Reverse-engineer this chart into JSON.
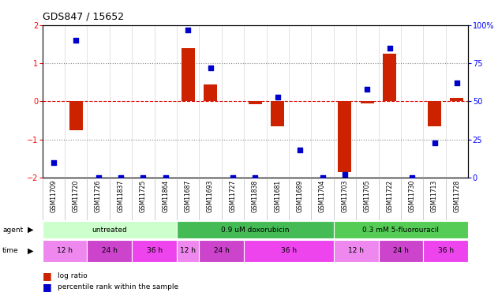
{
  "title": "GDS847 / 15652",
  "samples": [
    "GSM11709",
    "GSM11720",
    "GSM11726",
    "GSM11837",
    "GSM11725",
    "GSM11864",
    "GSM11687",
    "GSM11693",
    "GSM11727",
    "GSM11838",
    "GSM11681",
    "GSM11689",
    "GSM11704",
    "GSM11703",
    "GSM11705",
    "GSM11722",
    "GSM11730",
    "GSM11713",
    "GSM11728"
  ],
  "log_ratio": [
    0.0,
    -0.75,
    0.0,
    0.0,
    0.0,
    0.0,
    1.4,
    0.45,
    0.0,
    -0.07,
    -0.65,
    0.0,
    0.0,
    -1.85,
    -0.05,
    1.25,
    0.0,
    -0.65,
    0.1
  ],
  "percentile": [
    10,
    90,
    0,
    0,
    0,
    0,
    97,
    72,
    0,
    0,
    53,
    18,
    0,
    2,
    58,
    85,
    0,
    23,
    62
  ],
  "agents": [
    {
      "label": "untreated",
      "start": 0,
      "end": 6,
      "color": "#ccffcc"
    },
    {
      "label": "0.9 uM doxorubicin",
      "start": 6,
      "end": 13,
      "color": "#44bb55"
    },
    {
      "label": "0.3 mM 5-fluorouracil",
      "start": 13,
      "end": 19,
      "color": "#55cc55"
    }
  ],
  "times": [
    {
      "label": "12 h",
      "start": 0,
      "end": 2,
      "color": "#ee88ee"
    },
    {
      "label": "24 h",
      "start": 2,
      "end": 4,
      "color": "#cc44cc"
    },
    {
      "label": "36 h",
      "start": 4,
      "end": 6,
      "color": "#ee44ee"
    },
    {
      "label": "12 h",
      "start": 6,
      "end": 7,
      "color": "#ee88ee"
    },
    {
      "label": "24 h",
      "start": 7,
      "end": 9,
      "color": "#cc44cc"
    },
    {
      "label": "36 h",
      "start": 9,
      "end": 13,
      "color": "#ee44ee"
    },
    {
      "label": "12 h",
      "start": 13,
      "end": 15,
      "color": "#ee88ee"
    },
    {
      "label": "24 h",
      "start": 15,
      "end": 17,
      "color": "#cc44cc"
    },
    {
      "label": "36 h",
      "start": 17,
      "end": 19,
      "color": "#ee44ee"
    }
  ],
  "bar_color": "#cc2200",
  "dot_color": "#0000cc",
  "ylim_left": [
    -2.0,
    2.0
  ],
  "ylim_right": [
    0,
    100
  ],
  "yticks_left": [
    -2,
    -1,
    0,
    1,
    2
  ],
  "yticks_right": [
    0,
    25,
    50,
    75,
    100
  ],
  "ytick_labels_right": [
    "0",
    "25",
    "50",
    "75",
    "100%"
  ],
  "hlines": [
    {
      "y": 0,
      "color": "#dd0000",
      "ls": "--",
      "lw": 0.8
    },
    {
      "y": 1,
      "color": "#888888",
      "ls": ":",
      "lw": 0.8
    },
    {
      "y": -1,
      "color": "#888888",
      "ls": ":",
      "lw": 0.8
    }
  ],
  "background_color": "#ffffff",
  "label_fontsize": 5.5,
  "tick_fontsize": 7,
  "bar_width": 0.6
}
